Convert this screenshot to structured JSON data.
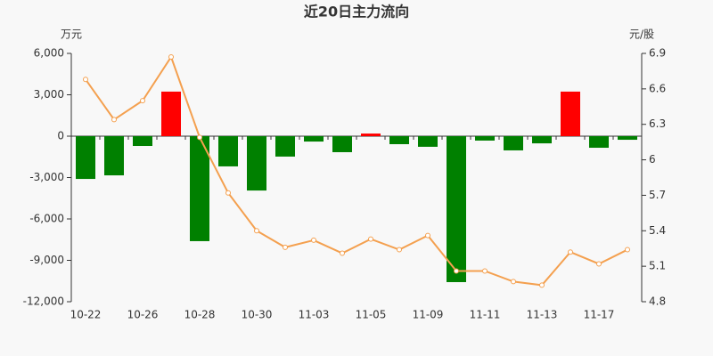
{
  "chart_data": {
    "type": "bar-line",
    "title": "近20日主力流向",
    "y_label": "万元",
    "y2_label": "元/股",
    "categories": [
      "10-22",
      null,
      "10-26",
      null,
      "10-28",
      null,
      "10-30",
      null,
      "11-03",
      null,
      "11-05",
      null,
      "11-09",
      null,
      "11-11",
      null,
      "11-13",
      null,
      "11-17",
      null
    ],
    "series": [
      {
        "type": "bar",
        "positive_color": "#ff0000",
        "negative_color": "#008000",
        "values": [
          -3100,
          -2840,
          -710,
          3230,
          -7610,
          -2190,
          -3940,
          -1480,
          -390,
          -1160,
          190,
          -580,
          -770,
          -10580,
          -320,
          -1030,
          -520,
          3230,
          -840,
          -260
        ]
      },
      {
        "type": "line",
        "axis": "y2",
        "color": "#f4a04f",
        "values": [
          6.68,
          6.34,
          6.5,
          6.87,
          6.19,
          5.72,
          5.4,
          5.26,
          5.32,
          5.21,
          5.33,
          5.24,
          5.36,
          5.06,
          5.06,
          4.97,
          4.94,
          5.22,
          5.12,
          5.24
        ]
      }
    ],
    "ylim": [
      -12000,
      6000
    ],
    "yticks": [
      {
        "value": 6000,
        "label": "6,000"
      },
      {
        "value": 3000,
        "label": "3,000"
      },
      0,
      {
        "value": -3000,
        "label": "-3,000"
      },
      {
        "value": -6000,
        "label": "-6,000"
      },
      {
        "value": -9000,
        "label": "-9,000"
      },
      {
        "value": -12000,
        "label": "-12,000"
      }
    ],
    "y2lim": [
      4.8,
      6.9
    ],
    "y2ticks": [
      6.9,
      6.6,
      6.3,
      6,
      5.7,
      5.4,
      5.1,
      4.8
    ]
  }
}
